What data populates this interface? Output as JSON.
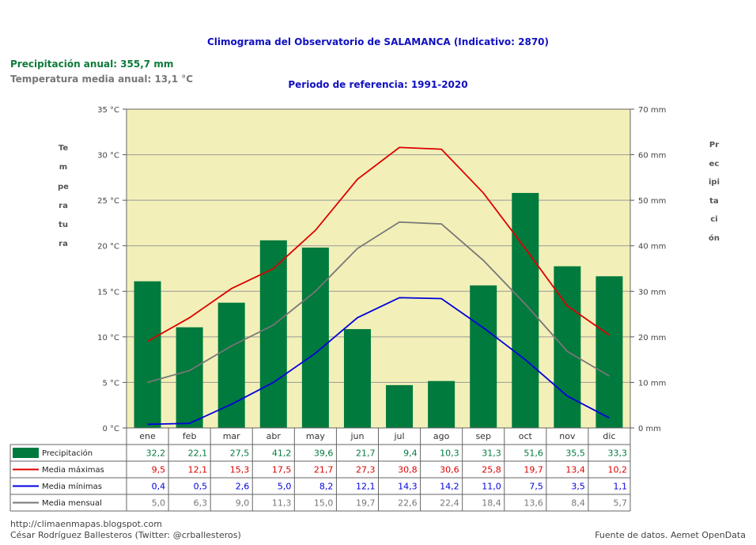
{
  "header": {
    "title": "Climograma del Observatorio de SALAMANCA (Indicativo: 2870)",
    "period": "Periodo de referencia: 1991-2020",
    "annual_precip": "Precipitación anual: 355,7 mm",
    "annual_temp": "Temperatura media anual: 13,1 °C"
  },
  "axis_titles": {
    "left": "Temperatura",
    "right": "Precipitación"
  },
  "footer": {
    "url": "http://climaenmapas.blogspot.com",
    "author": "César Rodríguez Ballesteros (Twitter: @crballesteros)",
    "source": "Fuente de datos. Aemet OpenData"
  },
  "colors": {
    "plot_bg": "#f2f0b8",
    "precip": "#007a3d",
    "max": "#dd0000",
    "min": "#0000dd",
    "mean": "#777777",
    "grid": "#999999"
  },
  "chart_data": {
    "type": "bar",
    "categories": [
      "ene",
      "feb",
      "mar",
      "abr",
      "may",
      "jun",
      "jul",
      "ago",
      "sep",
      "oct",
      "nov",
      "dic"
    ],
    "y_left": {
      "label": "Temperatura",
      "unit": "°C",
      "range": [
        0,
        35
      ],
      "ticks": [
        "0 °C",
        "5 °C",
        "10 °C",
        "15 °C",
        "20 °C",
        "25 °C",
        "30 °C",
        "35 °C"
      ]
    },
    "y_right": {
      "label": "Precipitación",
      "unit": "mm",
      "range": [
        0,
        70
      ],
      "ticks": [
        "0 mm",
        "10 mm",
        "20 mm",
        "30 mm",
        "40 mm",
        "50 mm",
        "60 mm",
        "70 mm"
      ]
    },
    "grid": true,
    "series": [
      {
        "key": "precip",
        "name": "Precipitación",
        "kind": "bar",
        "axis": "right",
        "values": [
          32.2,
          22.1,
          27.5,
          41.2,
          39.6,
          21.7,
          9.4,
          10.3,
          31.3,
          51.6,
          35.5,
          33.3
        ],
        "labels": [
          "32,2",
          "22,1",
          "27,5",
          "41,2",
          "39,6",
          "21,7",
          "9,4",
          "10,3",
          "31,3",
          "51,6",
          "35,5",
          "33,3"
        ]
      },
      {
        "key": "max",
        "name": "Media máximas",
        "kind": "line",
        "axis": "left",
        "values": [
          9.5,
          12.1,
          15.3,
          17.5,
          21.7,
          27.3,
          30.8,
          30.6,
          25.8,
          19.7,
          13.4,
          10.2
        ],
        "labels": [
          "9,5",
          "12,1",
          "15,3",
          "17,5",
          "21,7",
          "27,3",
          "30,8",
          "30,6",
          "25,8",
          "19,7",
          "13,4",
          "10,2"
        ]
      },
      {
        "key": "min",
        "name": "Media mínimas",
        "kind": "line",
        "axis": "left",
        "values": [
          0.4,
          0.5,
          2.6,
          5.0,
          8.2,
          12.1,
          14.3,
          14.2,
          11.0,
          7.5,
          3.5,
          1.1
        ],
        "labels": [
          "0,4",
          "0,5",
          "2,6",
          "5,0",
          "8,2",
          "12,1",
          "14,3",
          "14,2",
          "11,0",
          "7,5",
          "3,5",
          "1,1"
        ]
      },
      {
        "key": "mean",
        "name": "Media mensual",
        "kind": "line",
        "axis": "left",
        "values": [
          5.0,
          6.3,
          9.0,
          11.3,
          15.0,
          19.7,
          22.6,
          22.4,
          18.4,
          13.6,
          8.4,
          5.7
        ],
        "labels": [
          "5,0",
          "6,3",
          "9,0",
          "11,3",
          "15,0",
          "19,7",
          "22,6",
          "22,4",
          "18,4",
          "13,6",
          "8,4",
          "5,7"
        ]
      }
    ]
  }
}
